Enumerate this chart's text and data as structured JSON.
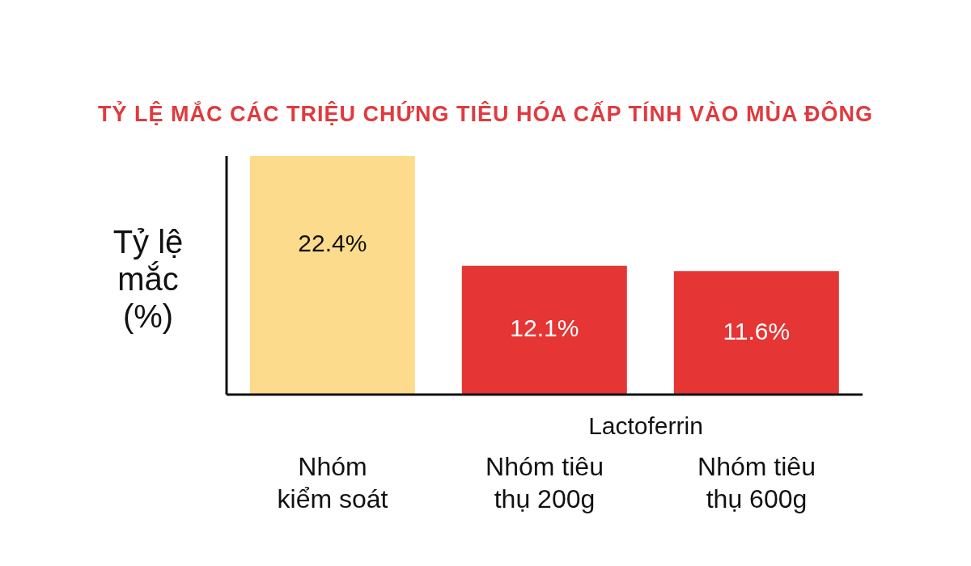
{
  "chart_data": {
    "type": "bar",
    "title": "TỶ LỆ MẮC CÁC TRIỆU CHỨNG TIÊU HÓA CẤP TÍNH VÀO MÙA ĐÔNG",
    "ylabel": "Tỷ lệ mắc\n(%)",
    "categories": [
      "Nhóm\nkiểm soát",
      "Nhóm tiêu\nthụ 200g",
      "Nhóm tiêu\nthụ 600g"
    ],
    "values": [
      22.4,
      12.1,
      11.6
    ],
    "value_labels": [
      "22.4%",
      "12.1%",
      "11.6%"
    ],
    "colors": [
      "#fddb8c",
      "#e53535",
      "#e53535"
    ],
    "tick_labels": "x",
    "annotations": [
      "Lactoferrin"
    ]
  }
}
